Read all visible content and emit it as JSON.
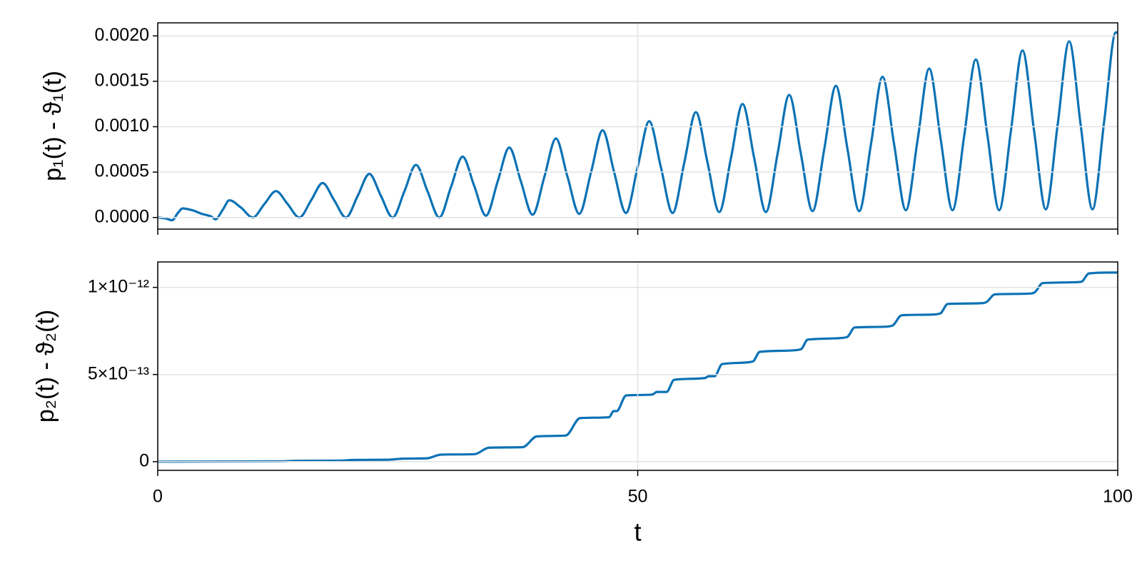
{
  "chart_data": [
    {
      "type": "line",
      "ylabel": "p₁(t) - ϑ₁(t)",
      "color": "#0b72b5",
      "grid": true,
      "xlim": [
        0,
        100
      ],
      "ylim": [
        -0.000128,
        0.002144
      ],
      "yticks": [
        {
          "value": 0,
          "label": "0.0000"
        },
        {
          "value": 0.0005,
          "label": "0.0005"
        },
        {
          "value": 0.001,
          "label": "0.0010"
        },
        {
          "value": 0.0015,
          "label": "0.0015"
        },
        {
          "value": 0.002,
          "label": "0.0020"
        }
      ],
      "x": [
        0,
        0.8,
        1.5,
        2.1,
        2.6,
        3.6,
        4.6,
        5.6,
        6.0,
        6.8,
        7.46,
        8.66,
        9.9,
        11.12,
        12.32,
        13.52,
        14.75,
        15.98,
        17.18,
        18.38,
        19.61,
        20.84,
        22.04,
        23.24,
        24.47,
        25.7,
        26.9,
        28.1,
        29.33,
        30.56,
        31.76,
        32.96,
        34.19,
        35.42,
        36.62,
        37.82,
        39.05,
        40.28,
        41.48,
        42.68,
        43.91,
        45.14,
        46.34,
        47.54,
        48.77,
        50.0,
        51.2,
        52.4,
        53.63,
        54.86,
        56.06,
        57.26,
        58.49,
        59.72,
        60.92,
        62.12,
        63.35,
        64.58,
        65.78,
        66.98,
        68.21,
        69.44,
        70.64,
        71.84,
        73.07,
        74.3,
        75.5,
        76.7,
        77.93,
        79.16,
        80.36,
        81.56,
        82.79,
        84.02,
        85.22,
        86.42,
        87.65,
        88.88,
        90.08,
        91.28,
        92.51,
        93.74,
        94.94,
        96.14,
        97.37,
        98.6,
        99.8,
        100
      ],
      "values": [
        0,
        -1e-05,
        -3e-05,
        5e-05,
        0.0001,
        8e-05,
        4e-05,
        1e-05,
        -2e-05,
        9e-05,
        0.00019,
        0.00011,
        0.0,
        0.00015,
        0.00029,
        0.00015,
        0.0,
        0.00019,
        0.00038,
        0.00019,
        0.0,
        0.00024,
        0.00048,
        0.00024,
        0.0,
        0.00029,
        0.00058,
        0.00029,
        0.0,
        0.00034,
        0.00067,
        0.00035,
        2e-05,
        0.0004,
        0.00077,
        0.0004,
        3e-05,
        0.00045,
        0.00087,
        0.00045,
        4e-05,
        0.0005,
        0.00096,
        0.0005,
        5e-05,
        0.00056,
        0.00106,
        0.00056,
        5e-05,
        0.00061,
        0.00116,
        0.00061,
        6e-05,
        0.00066,
        0.00125,
        0.00066,
        6e-05,
        0.00071,
        0.00135,
        0.00071,
        7e-05,
        0.00076,
        0.00145,
        0.00076,
        7e-05,
        0.00081,
        0.00155,
        0.00081,
        8e-05,
        0.00086,
        0.00164,
        0.00086,
        8e-05,
        0.00091,
        0.00174,
        0.00091,
        8e-05,
        0.00096,
        0.00184,
        0.00096,
        9e-05,
        0.00102,
        0.00194,
        0.00102,
        9e-05,
        0.00107,
        0.00204,
        0.00203
      ]
    },
    {
      "type": "line",
      "ylabel": "p₂(t) - ϑ₂(t)",
      "xlabel": "t",
      "color": "#0b72b5",
      "grid": true,
      "xlim": [
        0,
        100
      ],
      "xticks": [
        0,
        50,
        100
      ],
      "ylim": [
        -5e-14,
        1.146e-12
      ],
      "yticks": [
        0,
        {
          "value": 5e-13,
          "label": "5×10⁻¹³"
        },
        {
          "value": 1e-12,
          "label": "1×10⁻¹²"
        }
      ],
      "x": [
        0,
        13,
        14.5,
        19,
        20.5,
        24,
        25.5,
        28,
        29.5,
        33,
        34.5,
        38,
        39.5,
        42.5,
        44,
        47,
        47.5,
        47.8,
        48.8,
        51.5,
        52,
        53,
        53.8,
        57,
        57.4,
        58,
        58.8,
        61.5,
        62,
        62.7,
        66.5,
        67,
        67.7,
        71.3,
        71.8,
        72.6,
        76,
        76.5,
        77.5,
        81,
        81.5,
        82.3,
        86,
        86.3,
        87.2,
        91,
        91.3,
        92.2,
        95.8,
        96.2,
        97.0,
        99,
        100
      ],
      "values": [
        0,
        2e-15,
        5e-15,
        6e-15,
        1e-14,
        1.1e-14,
        1.7e-14,
        1.9e-14,
        4e-14,
        4.3e-14,
        8e-14,
        8.3e-14,
        1.45e-13,
        1.5e-13,
        2.5e-13,
        2.55e-13,
        2.9e-13,
        2.9e-13,
        3.8e-13,
        3.85e-13,
        4e-13,
        4e-13,
        4.7e-13,
        4.8e-13,
        4.9e-13,
        4.9e-13,
        5.6e-13,
        5.7e-13,
        5.75e-13,
        6.3e-13,
        6.4e-13,
        6.45e-13,
        7e-13,
        7.1e-13,
        7.15e-13,
        7.7e-13,
        7.75e-13,
        7.8e-13,
        8.4e-13,
        8.45e-13,
        8.5e-13,
        9.05e-13,
        9.1e-13,
        9.15e-13,
        9.6e-13,
        9.65e-13,
        9.7e-13,
        1.025e-12,
        1.03e-12,
        1.032e-12,
        1.08e-12,
        1.085e-12,
        1.085e-12
      ]
    }
  ]
}
